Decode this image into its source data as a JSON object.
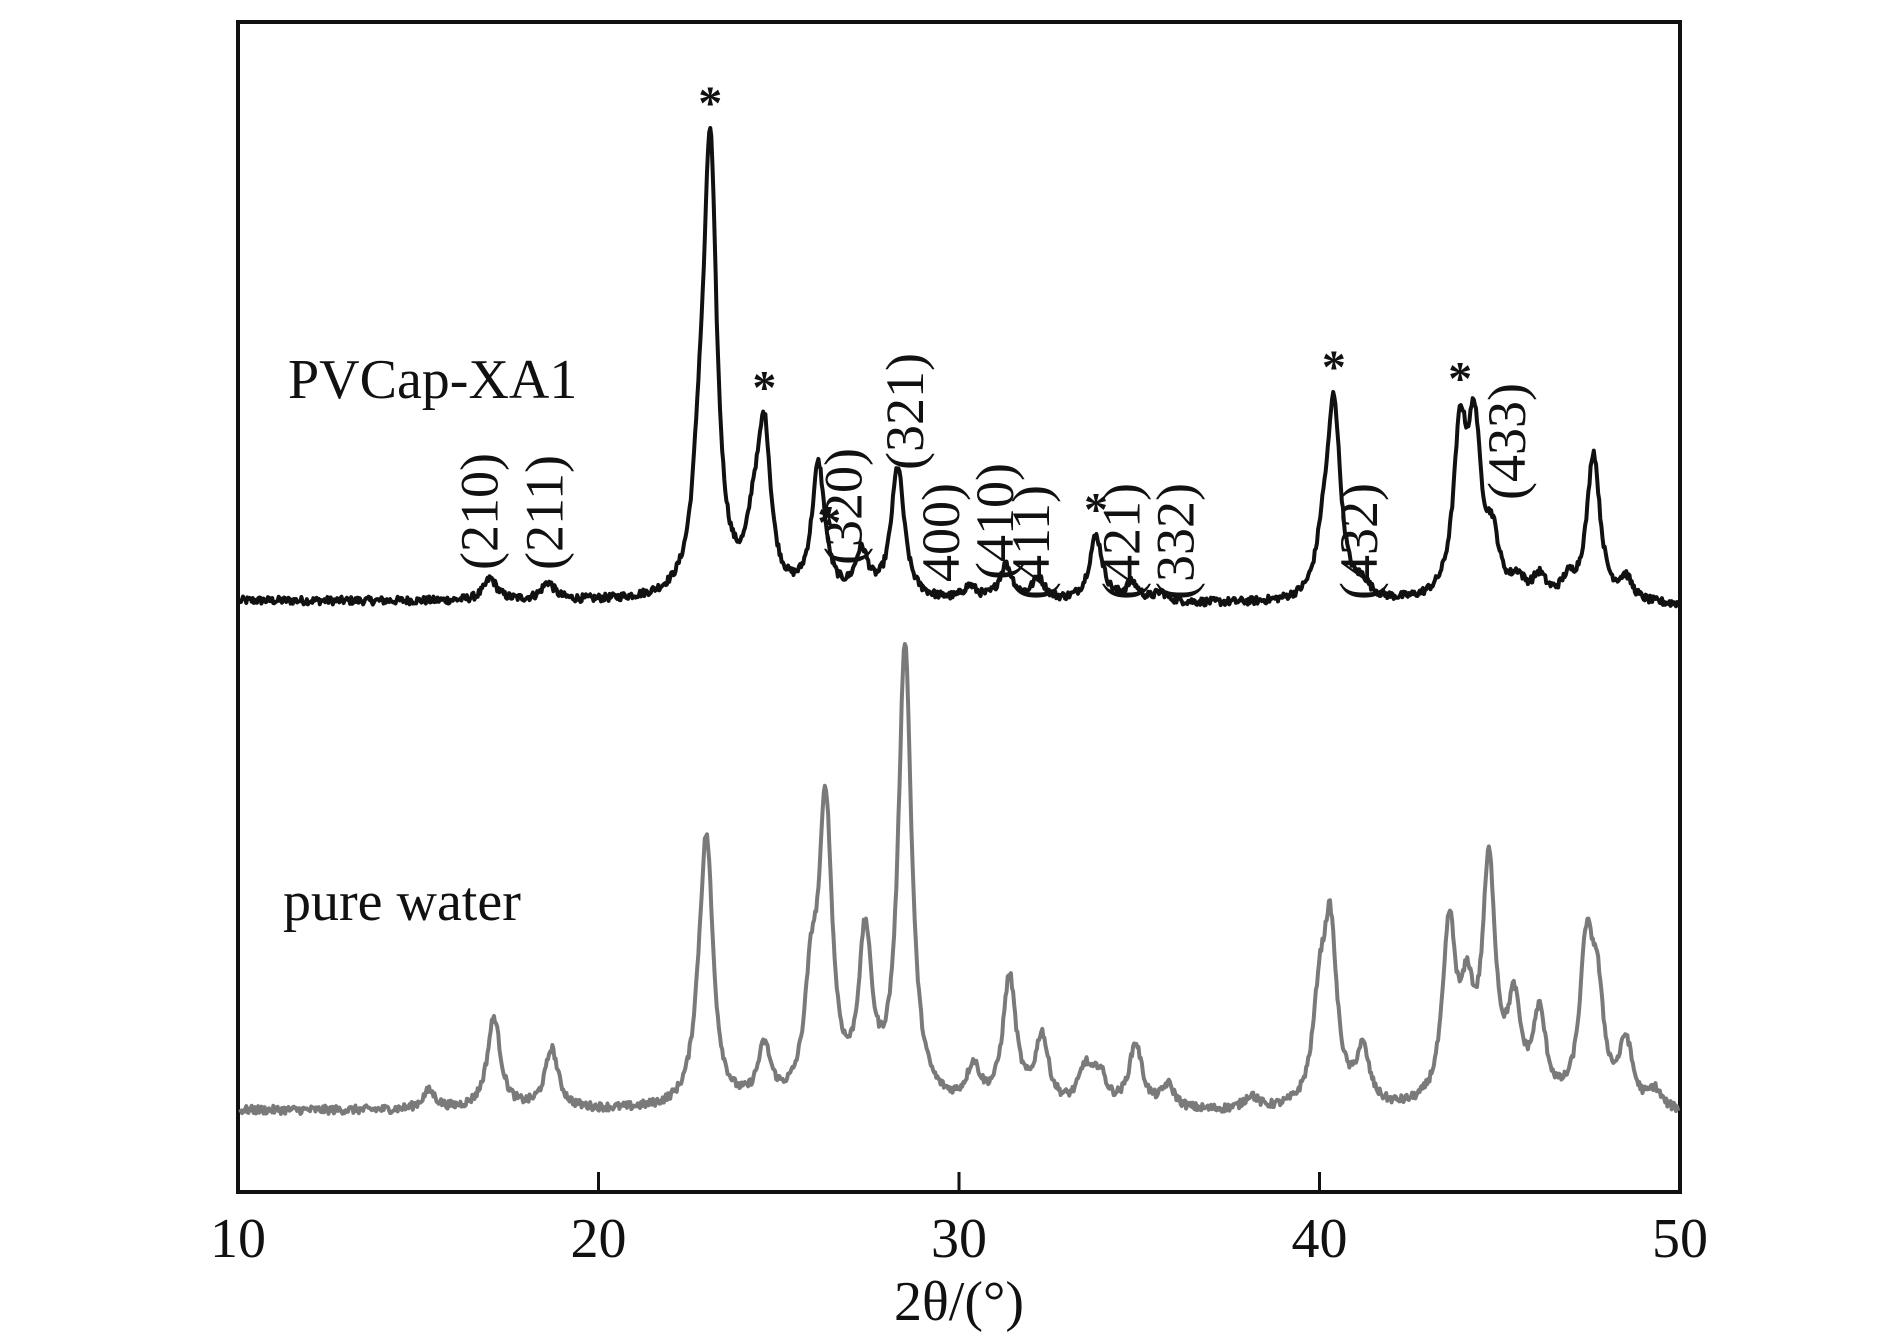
{
  "chart_data": {
    "type": "line",
    "xlabel": "2θ/(°)",
    "xlim": [
      10,
      50
    ],
    "x_ticks": [
      "10",
      "20",
      "30",
      "40",
      "50"
    ],
    "grid": false,
    "y_ticks_shown": false,
    "series": [
      {
        "name": "PVCap-XA1",
        "color": "#111111",
        "peaks": [
          {
            "x": 17.0,
            "y": 0.05
          },
          {
            "x": 18.6,
            "y": 0.04
          },
          {
            "x": 22.8,
            "y": 0.2
          },
          {
            "x": 23.1,
            "y": 1.0
          },
          {
            "x": 24.3,
            "y": 0.12
          },
          {
            "x": 24.6,
            "y": 0.36
          },
          {
            "x": 26.1,
            "y": 0.3
          },
          {
            "x": 27.3,
            "y": 0.1
          },
          {
            "x": 28.3,
            "y": 0.3
          },
          {
            "x": 30.3,
            "y": 0.03
          },
          {
            "x": 31.3,
            "y": 0.08
          },
          {
            "x": 32.2,
            "y": 0.05
          },
          {
            "x": 33.8,
            "y": 0.15
          },
          {
            "x": 34.8,
            "y": 0.04
          },
          {
            "x": 35.6,
            "y": 0.02
          },
          {
            "x": 40.1,
            "y": 0.1
          },
          {
            "x": 40.4,
            "y": 0.44
          },
          {
            "x": 41.2,
            "y": 0.03
          },
          {
            "x": 43.9,
            "y": 0.36
          },
          {
            "x": 44.3,
            "y": 0.36
          },
          {
            "x": 44.8,
            "y": 0.12
          },
          {
            "x": 45.5,
            "y": 0.04
          },
          {
            "x": 46.1,
            "y": 0.05
          },
          {
            "x": 46.9,
            "y": 0.04
          },
          {
            "x": 47.6,
            "y": 0.34
          },
          {
            "x": 48.5,
            "y": 0.05
          }
        ]
      },
      {
        "name": "pure water",
        "color": "#7a7a7a",
        "peaks": [
          {
            "x": 15.3,
            "y": 0.04
          },
          {
            "x": 17.1,
            "y": 0.2
          },
          {
            "x": 18.7,
            "y": 0.13
          },
          {
            "x": 22.8,
            "y": 0.08
          },
          {
            "x": 23.0,
            "y": 0.55
          },
          {
            "x": 24.6,
            "y": 0.12
          },
          {
            "x": 25.9,
            "y": 0.22
          },
          {
            "x": 26.3,
            "y": 0.63
          },
          {
            "x": 27.4,
            "y": 0.35
          },
          {
            "x": 28.5,
            "y": 1.0
          },
          {
            "x": 30.4,
            "y": 0.08
          },
          {
            "x": 31.4,
            "y": 0.28
          },
          {
            "x": 32.3,
            "y": 0.15
          },
          {
            "x": 33.5,
            "y": 0.08
          },
          {
            "x": 33.9,
            "y": 0.07
          },
          {
            "x": 34.9,
            "y": 0.14
          },
          {
            "x": 35.8,
            "y": 0.05
          },
          {
            "x": 38.1,
            "y": 0.03
          },
          {
            "x": 40.0,
            "y": 0.2
          },
          {
            "x": 40.3,
            "y": 0.37
          },
          {
            "x": 41.2,
            "y": 0.12
          },
          {
            "x": 43.6,
            "y": 0.38
          },
          {
            "x": 44.1,
            "y": 0.2
          },
          {
            "x": 44.7,
            "y": 0.51
          },
          {
            "x": 45.4,
            "y": 0.2
          },
          {
            "x": 46.1,
            "y": 0.19
          },
          {
            "x": 47.4,
            "y": 0.32
          },
          {
            "x": 47.7,
            "y": 0.22
          },
          {
            "x": 48.5,
            "y": 0.14
          },
          {
            "x": 49.3,
            "y": 0.04
          }
        ]
      }
    ],
    "annotations": {
      "hkl": [
        {
          "text": "(210)",
          "x": 17.2
        },
        {
          "text": "(211)",
          "x": 19.0
        },
        {
          "text": "(320)",
          "x": 27.3
        },
        {
          "text": "(321)",
          "x": 29.0
        },
        {
          "text": "(400)",
          "x": 30.0
        },
        {
          "text": "(410)",
          "x": 31.5
        },
        {
          "text": "(411)",
          "x": 32.5
        },
        {
          "text": "(421)",
          "x": 35.0
        },
        {
          "text": "(332)",
          "x": 36.5
        },
        {
          "text": "(432)",
          "x": 41.6
        },
        {
          "text": "(433)",
          "x": 45.7
        }
      ],
      "stars": [
        {
          "text": "*",
          "x": 23.1
        },
        {
          "text": "*",
          "x": 24.6
        },
        {
          "text": "*",
          "x": 26.4
        },
        {
          "text": "*",
          "x": 33.8
        },
        {
          "text": "*",
          "x": 40.4
        },
        {
          "text": "*",
          "x": 43.9
        }
      ]
    }
  }
}
